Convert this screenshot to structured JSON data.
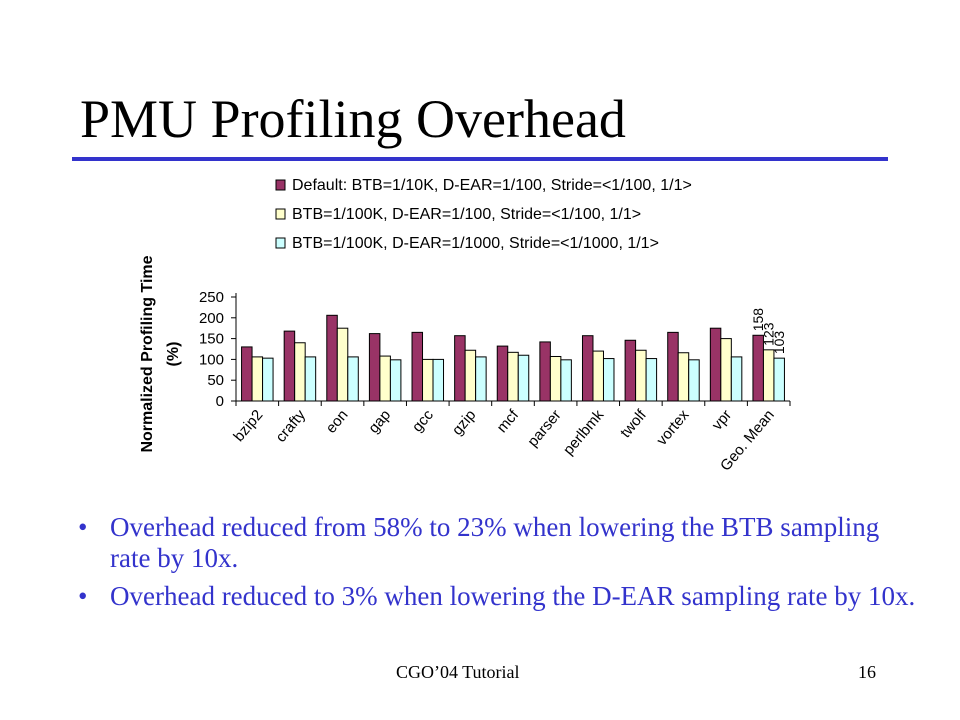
{
  "slide": {
    "title": "PMU Profiling Overhead",
    "footer_center": "CGO’04 Tutorial",
    "page_number": "16",
    "accent_color": "#3333cc",
    "bullets": [
      "Overhead reduced from 58% to 23% when lowering the BTB sampling rate by 10x.",
      "Overhead reduced to 3% when lowering the D-EAR sampling rate by 10x."
    ]
  },
  "chart_data": {
    "type": "bar",
    "ylabel_line1": "Normalized Profiling Time",
    "ylabel_line2": "(%)",
    "ylim": [
      0,
      250
    ],
    "yticks": [
      "0",
      "50",
      "100",
      "150",
      "200",
      "250"
    ],
    "grid": false,
    "legend_position": "top",
    "categories": [
      "bzip2",
      "crafty",
      "eon",
      "gap",
      "gcc",
      "gzip",
      "mcf",
      "parser",
      "perlbmk",
      "twolf",
      "vortex",
      "vpr",
      "Geo. Mean"
    ],
    "series": [
      {
        "name": "Default: BTB=1/10K, D-EAR=1/100, Stride=<1/100, 1/1>",
        "color": "#993366",
        "values": [
          130,
          168,
          206,
          162,
          165,
          157,
          132,
          142,
          157,
          146,
          165,
          175,
          158
        ]
      },
      {
        "name": "BTB=1/100K, D-EAR=1/100, Stride=<1/100, 1/1>",
        "color": "#ffffcc",
        "values": [
          106,
          140,
          175,
          108,
          100,
          122,
          117,
          107,
          120,
          122,
          116,
          150,
          123
        ]
      },
      {
        "name": "BTB=1/100K, D-EAR=1/1000, Stride=<1/1000, 1/1>",
        "color": "#ccffff",
        "values": [
          103,
          106,
          106,
          99,
          100,
          106,
          110,
          99,
          102,
          102,
          99,
          106,
          103
        ]
      }
    ],
    "data_labels": [
      "158",
      "123",
      "103"
    ]
  }
}
